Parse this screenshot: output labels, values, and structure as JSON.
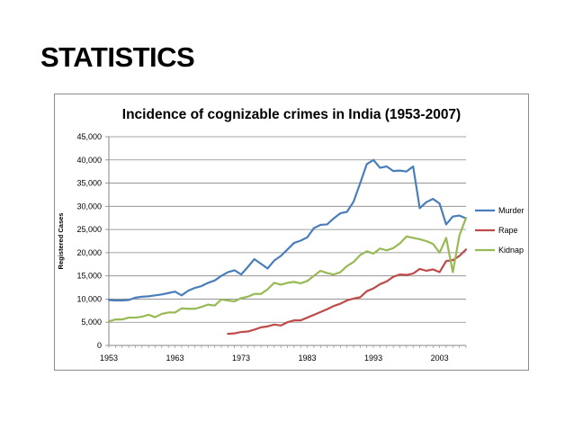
{
  "slide": {
    "title": "STATISTICS"
  },
  "chart_data": {
    "type": "line",
    "title": "Incidence of cognizable crimes in India (1953-2007)",
    "xlabel": "",
    "ylabel": "Registered Cases",
    "xlim": [
      1953,
      2007
    ],
    "ylim": [
      0,
      45000
    ],
    "x_ticks": [
      1953,
      1963,
      1973,
      1983,
      1993,
      2003
    ],
    "y_ticks": [
      0,
      5000,
      10000,
      15000,
      20000,
      25000,
      30000,
      35000,
      40000,
      45000
    ],
    "y_tick_labels": [
      "0",
      "5,000",
      "10,000",
      "15,000",
      "20,000",
      "25,000",
      "30,000",
      "35,000",
      "40,000",
      "45,000"
    ],
    "grid": "horizontal",
    "legend_position": "right",
    "series": [
      {
        "name": "Murder",
        "color": "#4a7ebb",
        "x": [
          1953,
          1954,
          1955,
          1956,
          1957,
          1958,
          1959,
          1960,
          1961,
          1962,
          1963,
          1964,
          1965,
          1966,
          1967,
          1968,
          1969,
          1970,
          1971,
          1972,
          1973,
          1974,
          1975,
          1976,
          1977,
          1978,
          1979,
          1980,
          1981,
          1982,
          1983,
          1984,
          1985,
          1986,
          1987,
          1988,
          1989,
          1990,
          1991,
          1992,
          1993,
          1994,
          1995,
          1996,
          1997,
          1998,
          1999,
          2000,
          2001,
          2002,
          2003,
          2004,
          2005,
          2006,
          2007
        ],
        "y": [
          9800,
          9700,
          9700,
          9800,
          10300,
          10500,
          10600,
          10800,
          11000,
          11300,
          11600,
          10800,
          11800,
          12400,
          12800,
          13500,
          14000,
          15000,
          15800,
          16200,
          15300,
          16900,
          18600,
          17600,
          16600,
          18300,
          19300,
          20700,
          22100,
          22600,
          23300,
          25300,
          26000,
          26100,
          27400,
          28500,
          28800,
          31000,
          35000,
          39100,
          40000,
          38300,
          38600,
          37600,
          37700,
          37500,
          38600,
          29600,
          30900,
          31600,
          30600,
          26100,
          27800,
          28000,
          27400
        ]
      },
      {
        "name": "Rape",
        "color": "#be4b48",
        "x": [
          1971,
          1972,
          1973,
          1974,
          1975,
          1976,
          1977,
          1978,
          1979,
          1980,
          1981,
          1982,
          1983,
          1984,
          1985,
          1986,
          1987,
          1988,
          1989,
          1990,
          1991,
          1992,
          1993,
          1994,
          1995,
          1996,
          1997,
          1998,
          1999,
          2000,
          2001,
          2002,
          2003,
          2004,
          2005,
          2006,
          2007
        ],
        "y": [
          2500,
          2600,
          2900,
          3000,
          3400,
          3900,
          4100,
          4500,
          4300,
          5000,
          5400,
          5400,
          6000,
          6600,
          7200,
          7800,
          8500,
          9000,
          9700,
          10100,
          10400,
          11700,
          12300,
          13200,
          13800,
          14800,
          15300,
          15200,
          15500,
          16500,
          16100,
          16400,
          15800,
          18200,
          18400,
          19300,
          20700
        ]
      },
      {
        "name": "Kidnap",
        "color": "#98b954",
        "x": [
          1953,
          1954,
          1955,
          1956,
          1957,
          1958,
          1959,
          1960,
          1961,
          1962,
          1963,
          1964,
          1965,
          1966,
          1967,
          1968,
          1969,
          1970,
          1971,
          1972,
          1973,
          1974,
          1975,
          1976,
          1977,
          1978,
          1979,
          1980,
          1981,
          1982,
          1983,
          1984,
          1985,
          1986,
          1987,
          1988,
          1989,
          1990,
          1991,
          1992,
          1993,
          1994,
          1995,
          1996,
          1997,
          1998,
          1999,
          2000,
          2001,
          2002,
          2003,
          2004,
          2005,
          2006,
          2007
        ],
        "y": [
          5200,
          5600,
          5600,
          6000,
          6000,
          6200,
          6600,
          6100,
          6800,
          7100,
          7100,
          8000,
          7900,
          7900,
          8300,
          8800,
          8600,
          9900,
          9700,
          9500,
          10200,
          10500,
          11100,
          11100,
          12100,
          13500,
          13100,
          13500,
          13700,
          13400,
          13900,
          15000,
          16100,
          15600,
          15300,
          15800,
          17100,
          18000,
          19500,
          20300,
          19800,
          20900,
          20500,
          21000,
          22000,
          23500,
          23200,
          22900,
          22500,
          21900,
          20000,
          23200,
          15800,
          23700,
          27500
        ]
      }
    ]
  }
}
